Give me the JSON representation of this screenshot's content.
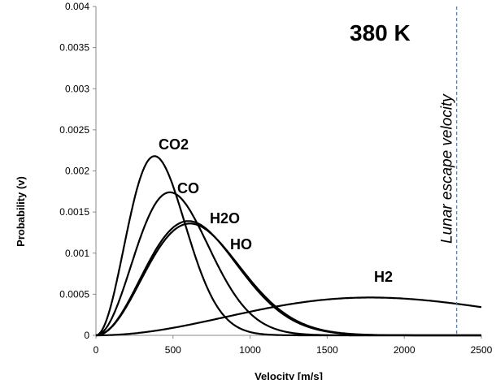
{
  "chart_data": {
    "type": "line",
    "title": "",
    "temperature_label": "380 K",
    "xlabel": "Velocity [m/s]",
    "ylabel": "Probability (v)",
    "xlim": [
      0,
      2500
    ],
    "ylim": [
      0,
      0.004
    ],
    "x_ticks": [
      "0",
      "500",
      "1000",
      "1500",
      "2000",
      "2500"
    ],
    "y_ticks": [
      "0",
      "0.0005",
      "0.001",
      "0.0015",
      "0.002",
      "0.0025",
      "0.003",
      "0.0035",
      "0.004"
    ],
    "grid": false,
    "legend": "none",
    "escape_velocity": {
      "value": 2340,
      "label": "Lunar escape velocity",
      "color": "#4a7fc0",
      "style": "dashed"
    },
    "series": [
      {
        "name": "CO2",
        "peak_x": 380,
        "peak_y": 0.00218
      },
      {
        "name": "CO",
        "peak_x": 480,
        "peak_y": 0.00174
      },
      {
        "name": "H2O",
        "peak_x": 600,
        "peak_y": 0.00139
      },
      {
        "name": "HO",
        "peak_x": 610,
        "peak_y": 0.00136
      },
      {
        "name": "H2",
        "peak_x": 1780,
        "peak_y": 0.00046
      }
    ]
  }
}
